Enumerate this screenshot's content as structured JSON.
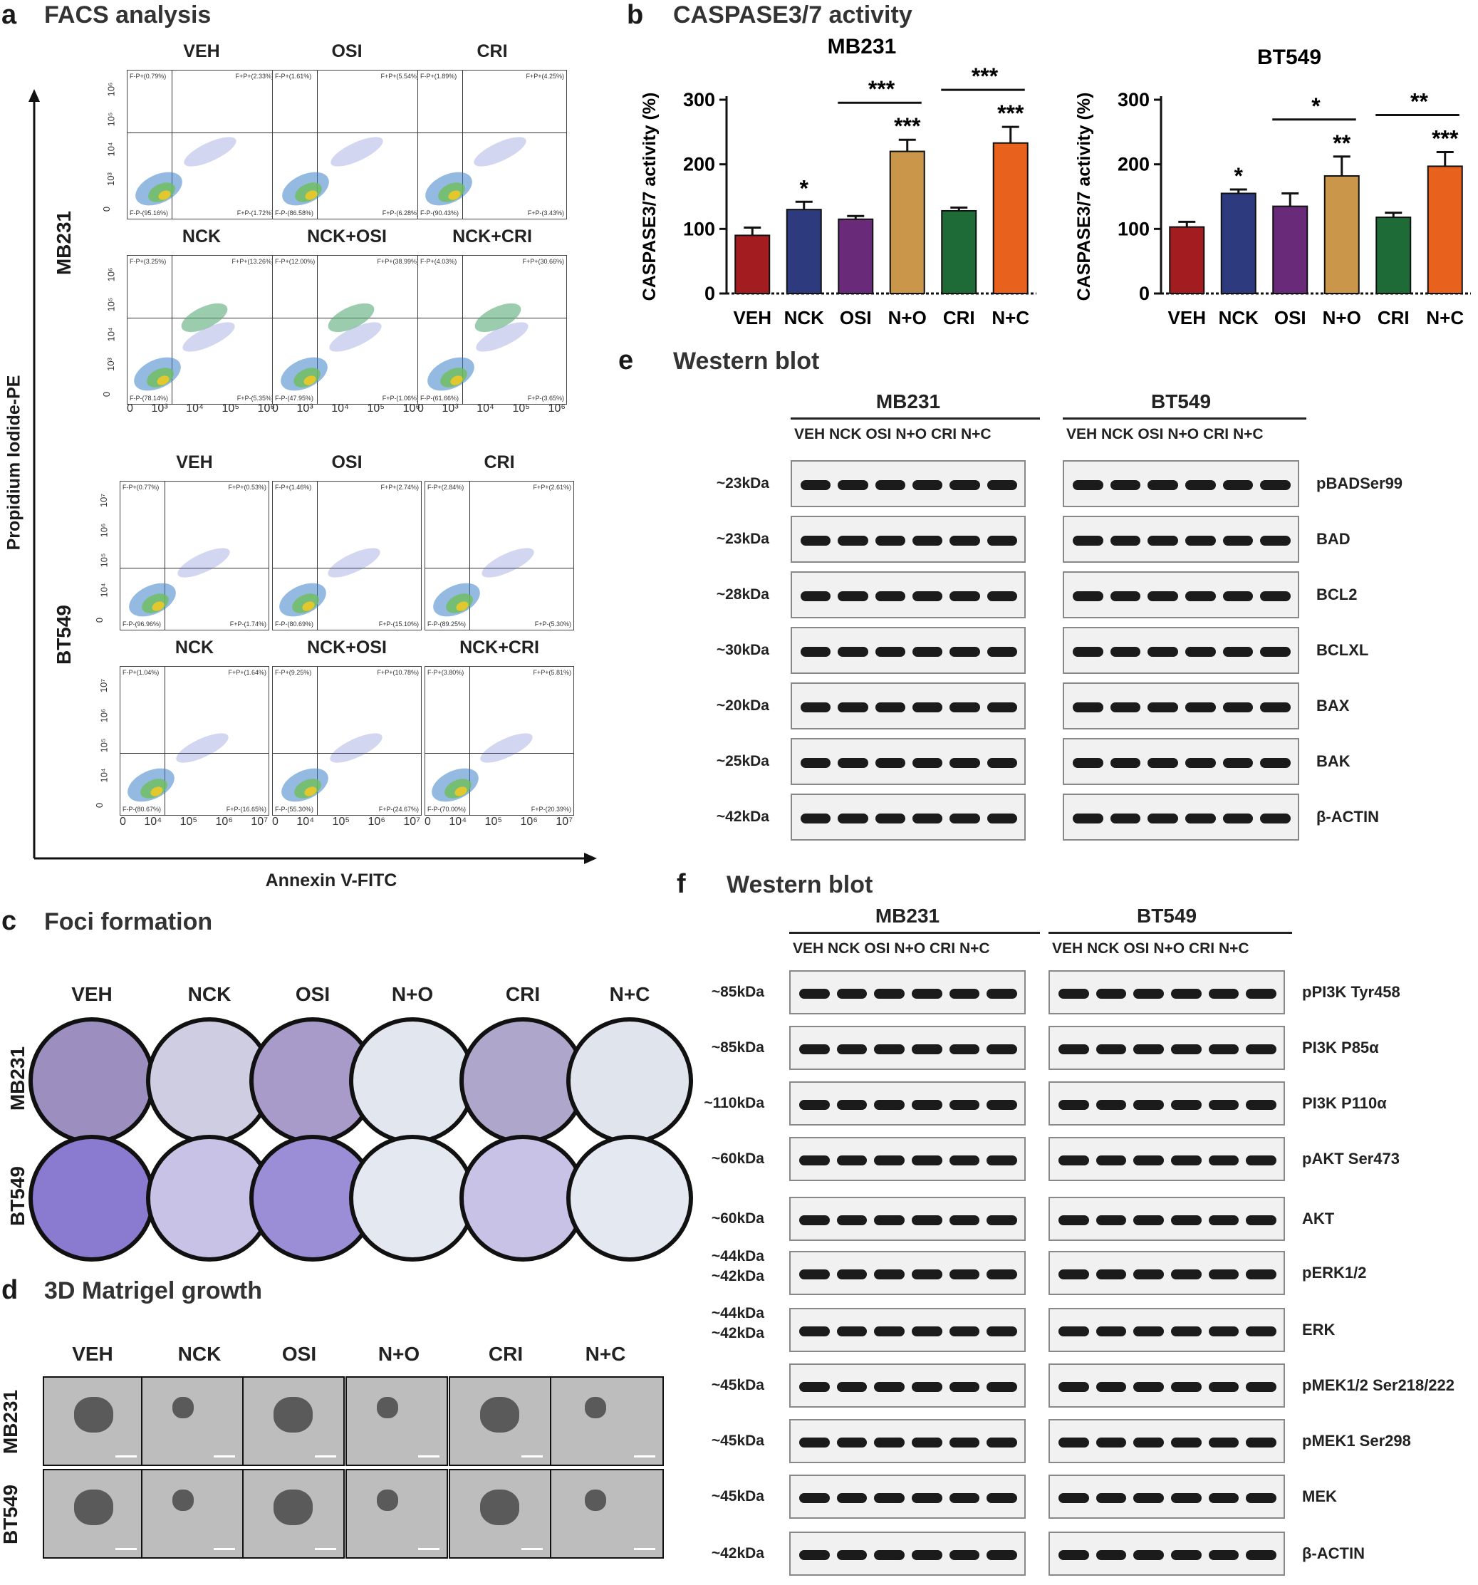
{
  "panel_a": {
    "letter": "a",
    "title": "FACS analysis",
    "y_axis_label": "Propidium Iodide-PE",
    "x_axis_label": "Annexin V-FITC",
    "mb231": {
      "cell_line": "MB231",
      "row1": [
        {
          "name": "VEH",
          "ul": "F-P+(0.79%)",
          "ur": "F+P+(2.33%)",
          "ll": "F-P-(95.16%)",
          "lr": "F+P-(1.72%)"
        },
        {
          "name": "OSI",
          "ul": "F-P+(1.61%)",
          "ur": "F+P+(5.54%)",
          "ll": "F-P-(86.58%)",
          "lr": "F+P-(6.28%)"
        },
        {
          "name": "CRI",
          "ul": "F-P+(1.89%)",
          "ur": "F+P+(4.25%)",
          "ll": "F-P-(90.43%)",
          "lr": "F+P-(3.43%)"
        }
      ],
      "row2": [
        {
          "name": "NCK",
          "ul": "F-P+(3.25%)",
          "ur": "F+P+(13.26%)",
          "ll": "F-P-(78.14%)",
          "lr": "F+P-(5.35%)"
        },
        {
          "name": "NCK+OSI",
          "ul": "F-P+(12.00%)",
          "ur": "F+P+(38.99%)",
          "ll": "F-P-(47.95%)",
          "lr": "F+P-(1.06%)"
        },
        {
          "name": "NCK+CRI",
          "ul": "F-P+(4.03%)",
          "ur": "F+P+(30.66%)",
          "ll": "F-P-(61.66%)",
          "lr": "F+P-(3.65%)"
        }
      ],
      "y_ticks": [
        "10⁶",
        "10⁵",
        "10⁴",
        "10³",
        "0"
      ],
      "x_ticks": [
        "0",
        "10³",
        "10⁴",
        "10⁵",
        "10⁶"
      ]
    },
    "bt549": {
      "cell_line": "BT549",
      "row1": [
        {
          "name": "VEH",
          "ul": "F-P+(0.77%)",
          "ur": "F+P+(0.53%)",
          "ll": "F-P-(96.96%)",
          "lr": "F+P-(1.74%)"
        },
        {
          "name": "OSI",
          "ul": "F-P+(1.46%)",
          "ur": "F+P+(2.74%)",
          "ll": "F-P-(80.69%)",
          "lr": "F+P-(15.10%)"
        },
        {
          "name": "CRI",
          "ul": "F-P+(2.84%)",
          "ur": "F+P+(2.61%)",
          "ll": "F-P-(89.25%)",
          "lr": "F+P-(5.30%)"
        }
      ],
      "row2": [
        {
          "name": "NCK",
          "ul": "F-P+(1.04%)",
          "ur": "F+P+(1.64%)",
          "ll": "F-P-(80.67%)",
          "lr": "F+P-(16.65%)"
        },
        {
          "name": "NCK+OSI",
          "ul": "F-P+(9.25%)",
          "ur": "F+P+(10.78%)",
          "ll": "F-P-(55.30%)",
          "lr": "F+P-(24.67%)"
        },
        {
          "name": "NCK+CRI",
          "ul": "F-P+(3.80%)",
          "ur": "F+P+(5.81%)",
          "ll": "F-P-(70.00%)",
          "lr": "F+P-(20.39%)"
        }
      ],
      "y_ticks": [
        "10⁷",
        "10⁶",
        "10⁵",
        "10⁴",
        "0"
      ],
      "x_ticks": [
        "0",
        "10⁴",
        "10⁵",
        "10⁶",
        "10⁷"
      ]
    }
  },
  "panel_b": {
    "letter": "b",
    "title": "CASPASE3/7 activity"
  },
  "chart_data": [
    {
      "type": "bar",
      "title": "MB231",
      "ylabel": "CASPASE3/7 activity (%)",
      "categories": [
        "VEH",
        "NCK",
        "OSI",
        "N+O",
        "CRI",
        "N+C"
      ],
      "values": [
        90,
        130,
        115,
        220,
        128,
        233
      ],
      "errors": [
        12,
        12,
        5,
        18,
        5,
        25
      ],
      "colors": [
        "#a31d20",
        "#2e3a7e",
        "#6a2a7a",
        "#c9964a",
        "#1f6b37",
        "#e8621e"
      ],
      "ylim": [
        0,
        300
      ],
      "yticks": [
        "0",
        "100",
        "200",
        "300"
      ],
      "bar_stars": [
        "",
        "*",
        "",
        "***",
        "",
        "***"
      ],
      "comparisons": [
        {
          "from": 2,
          "to": 3,
          "label": "***"
        },
        {
          "from": 4,
          "to": 5,
          "label": "***"
        }
      ]
    },
    {
      "type": "bar",
      "title": "BT549",
      "ylabel": "CASPASE3/7 activity (%)",
      "categories": [
        "VEH",
        "NCK",
        "OSI",
        "N+O",
        "CRI",
        "N+C"
      ],
      "values": [
        103,
        155,
        135,
        182,
        118,
        197
      ],
      "errors": [
        8,
        6,
        20,
        30,
        7,
        22
      ],
      "colors": [
        "#a31d20",
        "#2e3a7e",
        "#6a2a7a",
        "#c9964a",
        "#1f6b37",
        "#e8621e"
      ],
      "ylim": [
        0,
        300
      ],
      "yticks": [
        "0",
        "100",
        "200",
        "300"
      ],
      "bar_stars": [
        "",
        "*",
        "",
        "**",
        "",
        "***"
      ],
      "comparisons": [
        {
          "from": 2,
          "to": 3,
          "label": "*"
        },
        {
          "from": 4,
          "to": 5,
          "label": "**"
        }
      ]
    }
  ],
  "panel_c": {
    "letter": "c",
    "title": "Foci formation",
    "columns": [
      "VEH",
      "NCK",
      "OSI",
      "N+O",
      "CRI",
      "N+C"
    ],
    "rows": [
      "MB231",
      "BT549"
    ]
  },
  "panel_d": {
    "letter": "d",
    "title": "3D Matrigel growth",
    "columns": [
      "VEH",
      "NCK",
      "OSI",
      "N+O",
      "CRI",
      "N+C"
    ],
    "rows": [
      "MB231",
      "BT549"
    ]
  },
  "panel_e": {
    "letter": "e",
    "title": "Western blot",
    "cell_lines": [
      "MB231",
      "BT549"
    ],
    "lanes": "VEH NCK OSI N+O CRI N+C",
    "rows": [
      {
        "kda": "~23kDa",
        "protein": "pBADSer99"
      },
      {
        "kda": "~23kDa",
        "protein": "BAD"
      },
      {
        "kda": "~28kDa",
        "protein": "BCL2"
      },
      {
        "kda": "~30kDa",
        "protein": "BCLXL"
      },
      {
        "kda": "~20kDa",
        "protein": "BAX"
      },
      {
        "kda": "~25kDa",
        "protein": "BAK"
      },
      {
        "kda": "~42kDa",
        "protein": "β-ACTIN"
      }
    ]
  },
  "panel_f": {
    "letter": "f",
    "title": "Western blot",
    "cell_lines": [
      "MB231",
      "BT549"
    ],
    "lanes": "VEH NCK OSI N+O CRI N+C",
    "rows": [
      {
        "kda": "~85kDa",
        "protein": "pPI3K Tyr458"
      },
      {
        "kda": "~85kDa",
        "protein": "PI3K P85α"
      },
      {
        "kda": "~110kDa",
        "protein": "PI3K P110α"
      },
      {
        "kda": "~60kDa",
        "protein": "pAKT Ser473"
      },
      {
        "kda": "~60kDa",
        "protein": "AKT"
      },
      {
        "kda": "~44kDa",
        "kda2": "~42kDa",
        "protein": "pERK1/2"
      },
      {
        "kda": "~44kDa",
        "kda2": "~42kDa",
        "protein": "ERK"
      },
      {
        "kda": "~45kDa",
        "protein": "pMEK1/2 Ser218/222"
      },
      {
        "kda": "~45kDa",
        "protein": "pMEK1 Ser298"
      },
      {
        "kda": "~45kDa",
        "protein": "MEK"
      },
      {
        "kda": "~42kDa",
        "protein": "β-ACTIN"
      }
    ]
  }
}
